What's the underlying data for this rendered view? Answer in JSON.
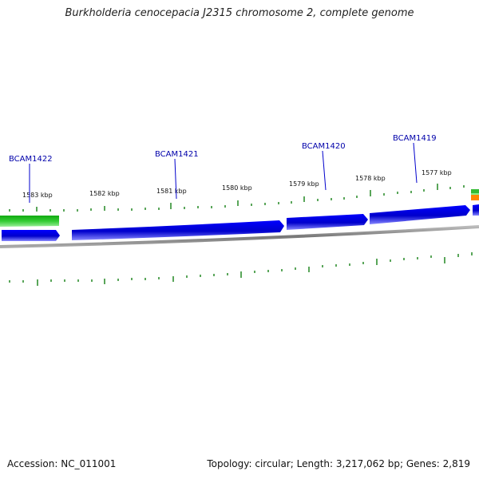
{
  "title": "Burkholderia cenocepacia J2315 chromosome 2, complete genome",
  "footer": {
    "accession": "Accession: NC_011001",
    "summary": "Topology: circular; Length: 3,217,062 bp; Genes: 2,819"
  },
  "colors": {
    "gene_forward": "#0000dd",
    "gene_highlight": "#7777ff",
    "rna_green": "#33bb33",
    "rna_light": "#88ee88",
    "orange": "#ff8800",
    "backbone": "#888888",
    "tick": "#228822",
    "label_blue": "#0000aa",
    "label_dark": "#111111"
  },
  "genes": [
    {
      "name": "BCAM1422"
    },
    {
      "name": "BCAM1421"
    },
    {
      "name": "BCAM1420"
    },
    {
      "name": "BCAM1419"
    }
  ],
  "kbp_labels": [
    "1583 kbp",
    "1582 kbp",
    "1581 kbp",
    "1580 kbp",
    "1579 kbp",
    "1578 kbp",
    "1577 kbp"
  ]
}
